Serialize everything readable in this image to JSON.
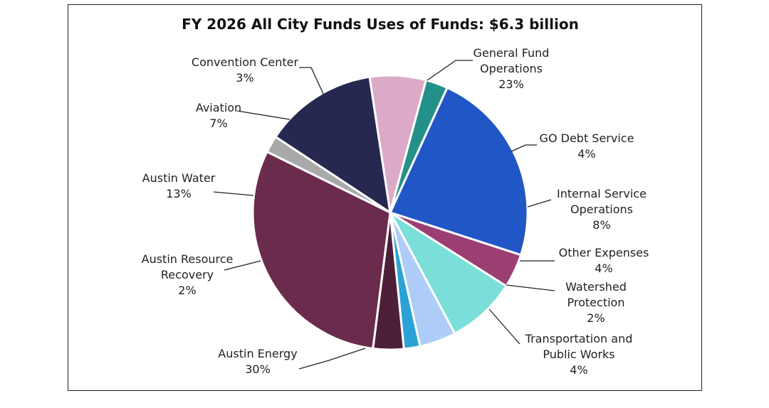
{
  "chart_data": {
    "type": "pie",
    "title": "FY 2026 All City Funds Uses of Funds: $6.3 billion",
    "slices": [
      {
        "name": [
          "General Fund",
          "Operations"
        ],
        "pct_label": "23%",
        "value": 23.2,
        "color": "#2156C6"
      },
      {
        "name": [
          "GO Debt Service"
        ],
        "pct_label": "4%",
        "value": 4.0,
        "color": "#9B3E73"
      },
      {
        "name": [
          "Internal Service",
          "Operations"
        ],
        "pct_label": "8%",
        "value": 8.2,
        "color": "#7ADFD8"
      },
      {
        "name": [
          "Other Expenses"
        ],
        "pct_label": "4%",
        "value": 4.3,
        "color": "#ADCDF8"
      },
      {
        "name": [
          "Watershed",
          "Protection"
        ],
        "pct_label": "2%",
        "value": 1.9,
        "color": "#2AA2D5"
      },
      {
        "name": [
          "Transportation and",
          "Public Works"
        ],
        "pct_label": "4%",
        "value": 3.6,
        "color": "#4D2038"
      },
      {
        "name": [
          "Austin Energy"
        ],
        "pct_label": "30%",
        "value": 30.3,
        "color": "#6B2B4C"
      },
      {
        "name": [
          "Austin Resource",
          "Recovery"
        ],
        "pct_label": "2%",
        "value": 2.0,
        "color": "#A9A9A9"
      },
      {
        "name": [
          "Austin Water"
        ],
        "pct_label": "13%",
        "value": 13.3,
        "color": "#262850"
      },
      {
        "name": [
          "Aviation"
        ],
        "pct_label": "7%",
        "value": 6.6,
        "color": "#DCAAC9"
      },
      {
        "name": [
          "Convention Center"
        ],
        "pct_label": "3%",
        "value": 2.6,
        "color": "#23918A"
      }
    ]
  }
}
